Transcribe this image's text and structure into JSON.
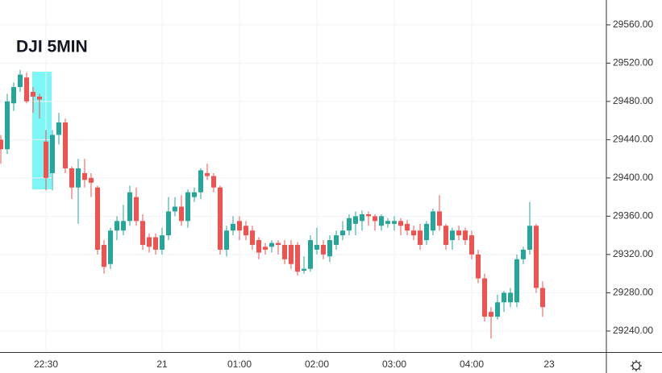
{
  "chart_data": {
    "type": "candlestick",
    "title": "DJI 5MIN",
    "categories": [
      null,
      null,
      null,
      null,
      null,
      null,
      null,
      "22:30",
      null,
      null,
      null,
      null,
      null,
      null,
      null,
      null,
      null,
      null,
      null,
      null,
      null,
      null,
      null,
      null,
      null,
      "21",
      null,
      null,
      null,
      null,
      null,
      null,
      null,
      null,
      null,
      null,
      null,
      "01:00",
      null,
      null,
      null,
      null,
      null,
      null,
      null,
      null,
      null,
      null,
      null,
      "02:00",
      null,
      null,
      null,
      null,
      null,
      null,
      null,
      null,
      null,
      null,
      null,
      "03:00",
      null,
      null,
      null,
      null,
      null,
      null,
      null,
      null,
      null,
      null,
      null,
      "04:00",
      null,
      null,
      null,
      null,
      null,
      null,
      null,
      null,
      null,
      null,
      null
    ],
    "xtick_last": "23",
    "open": [
      29440,
      29430,
      29478,
      29495,
      29505,
      29490,
      29485,
      29438,
      29405,
      29445,
      29458,
      29410,
      29390,
      29405,
      29400,
      29390,
      29330,
      29310,
      29345,
      29345,
      29355,
      29380,
      29355,
      29338,
      29338,
      29325,
      29340,
      29365,
      29370,
      29355,
      29380,
      29385,
      29405,
      29402,
      29390,
      29325,
      29345,
      29355,
      29350,
      29345,
      29335,
      29328,
      29328,
      29332,
      29330,
      29330,
      29330,
      29303,
      29305,
      29325,
      29330,
      29318,
      29330,
      29340,
      29345,
      29352,
      29355,
      29362,
      29360,
      29350,
      29352,
      29352,
      29355,
      29352,
      29345,
      29345,
      29335,
      29345,
      29365,
      29350,
      29335,
      29345,
      29345,
      29340,
      29320,
      29295,
      29260,
      29255,
      29270,
      29270,
      29270,
      29315,
      29325,
      29350,
      29285
    ],
    "high": [
      29445,
      29488,
      29500,
      29513,
      29510,
      29495,
      29488,
      29450,
      29450,
      29468,
      29462,
      29412,
      29420,
      29420,
      29405,
      29392,
      29335,
      29348,
      29360,
      29372,
      29392,
      29390,
      29362,
      29342,
      29342,
      29348,
      29380,
      29380,
      29382,
      29388,
      29390,
      29410,
      29415,
      29405,
      29392,
      29350,
      29360,
      29360,
      29355,
      29350,
      29338,
      29332,
      29335,
      29335,
      29335,
      29335,
      29333,
      29318,
      29340,
      29348,
      29335,
      29340,
      29345,
      29355,
      29362,
      29365,
      29366,
      29365,
      29362,
      29362,
      29358,
      29360,
      29358,
      29356,
      29350,
      29352,
      29355,
      29368,
      29382,
      29352,
      29348,
      29350,
      29348,
      29345,
      29325,
      29300,
      29265,
      29278,
      29282,
      29285,
      29320,
      29328,
      29375,
      29352,
      29292
    ],
    "low": [
      29415,
      29425,
      29470,
      29490,
      29478,
      29468,
      29462,
      29387,
      29387,
      29435,
      29405,
      29378,
      29352,
      29390,
      29380,
      29320,
      29300,
      29305,
      29335,
      29340,
      29350,
      29350,
      29325,
      29322,
      29320,
      29320,
      29335,
      29360,
      29350,
      29348,
      29375,
      29378,
      29398,
      29385,
      29320,
      29318,
      29340,
      29335,
      29335,
      29325,
      29315,
      29320,
      29322,
      29320,
      29310,
      29305,
      29298,
      29300,
      29302,
      29320,
      29315,
      29312,
      29325,
      29335,
      29340,
      29340,
      29345,
      29350,
      29345,
      29345,
      29348,
      29345,
      29340,
      29340,
      29335,
      29325,
      29330,
      29340,
      29345,
      29325,
      29325,
      29335,
      29330,
      29315,
      29290,
      29250,
      29232,
      29252,
      29260,
      29265,
      29265,
      29310,
      29320,
      29280,
      29255
    ],
    "close": [
      29430,
      29480,
      29495,
      29508,
      29480,
      29485,
      29482,
      29400,
      29445,
      29458,
      29410,
      29390,
      29410,
      29398,
      29395,
      29325,
      29307,
      29345,
      29355,
      29355,
      29385,
      29355,
      29330,
      29328,
      29325,
      29340,
      29365,
      29370,
      29355,
      29385,
      29385,
      29408,
      29402,
      29390,
      29325,
      29345,
      29352,
      29345,
      29340,
      29330,
      29322,
      29325,
      29332,
      29330,
      29315,
      29310,
      29302,
      29305,
      29335,
      29330,
      29320,
      29335,
      29340,
      29345,
      29358,
      29360,
      29362,
      29360,
      29355,
      29360,
      29355,
      29355,
      29350,
      29345,
      29340,
      29330,
      29352,
      29365,
      29350,
      29330,
      29345,
      29340,
      29335,
      29320,
      29295,
      29255,
      29255,
      29270,
      29280,
      29280,
      29315,
      29325,
      29350,
      29285,
      29265
    ],
    "up_color": "#26a69a",
    "down_color": "#ef5350",
    "ylim": [
      29218,
      29586
    ],
    "yticks": [
      {
        "value": 29240,
        "label": "29240.00"
      },
      {
        "value": 29280,
        "label": "29280.00"
      },
      {
        "value": 29320,
        "label": "29320.00"
      },
      {
        "value": 29360,
        "label": "29360.00"
      },
      {
        "value": 29400,
        "label": "29400.00"
      },
      {
        "value": 29440,
        "label": "29440.00"
      },
      {
        "value": 29480,
        "label": "29480.00"
      },
      {
        "value": 29520,
        "label": "29520.00"
      },
      {
        "value": 29560,
        "label": "29560.00"
      }
    ],
    "grid": true
  }
}
